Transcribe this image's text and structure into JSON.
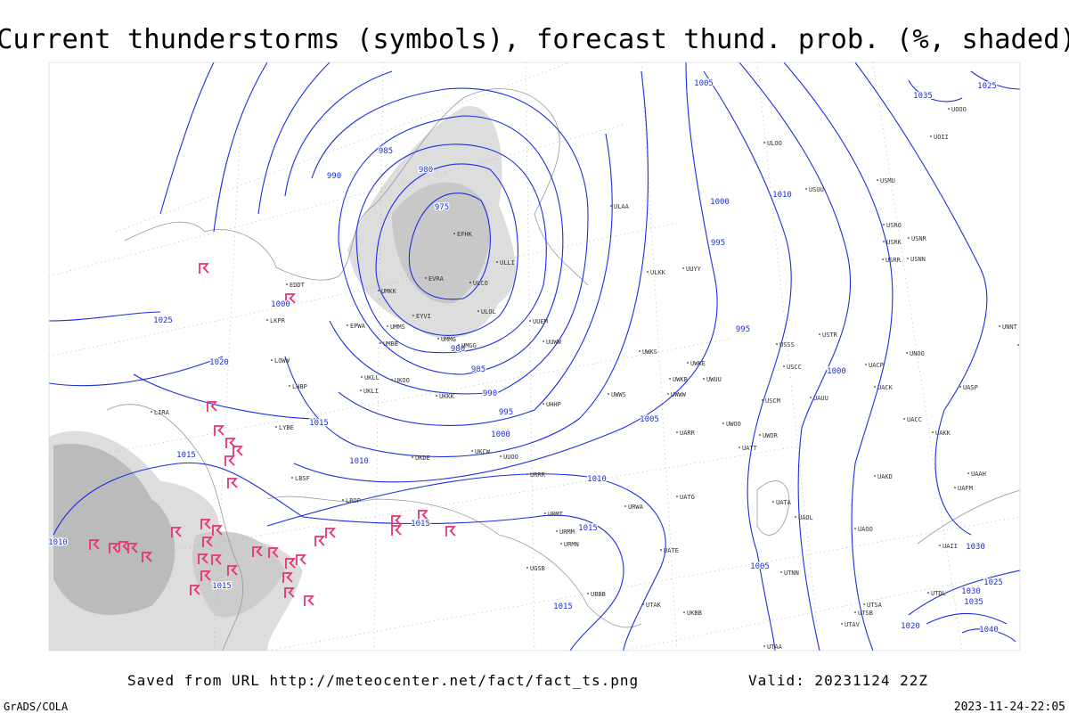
{
  "title": "Current thunderstorms (symbols), forecast thund. prob. (%, shaded)",
  "footer": {
    "source": "Saved from URL http://meteocenter.net/fact/fact_ts.png",
    "valid": "Valid: 20231124 22Z",
    "credit": "GrADS/COLA",
    "timestamp": "2023-11-24-22:05"
  },
  "isobar_labels": [
    "985",
    "980",
    "990",
    "975",
    "1000",
    "1025",
    "1020",
    "1015",
    "1015",
    "1010",
    "995",
    "990",
    "985",
    "980",
    "1000",
    "1005",
    "1000",
    "1010",
    "995",
    "995",
    "1000",
    "1005",
    "1010",
    "1015",
    "1015",
    "1015",
    "1015",
    "1005",
    "1035",
    "1025",
    "1010",
    "1030",
    "1025",
    "1030",
    "1035",
    "1040",
    "1020"
  ],
  "stations": [
    "ULAA",
    "ULOL",
    "ULCO",
    "EFHK",
    "EVRA",
    "UMKK",
    "EYVI",
    "EPWA",
    "UMMS",
    "UMBB",
    "UMMG",
    "UMGG",
    "ULLI",
    "UUEM",
    "UUWW",
    "UKLL",
    "UKLI",
    "UKKK",
    "LHBP",
    "LOWW",
    "LKPR",
    "EDDT",
    "LIRA",
    "LYBE",
    "LBSF",
    "LROP",
    "UUYY",
    "ULKK",
    "UWKS",
    "UWKE",
    "UWKB",
    "UWWW",
    "UWUU",
    "USCC",
    "USSS",
    "USTR",
    "USCM",
    "UAUU",
    "UACC",
    "UAKK",
    "UACK",
    "UACP",
    "UNOO",
    "UASP",
    "UATT",
    "UWOO",
    "UWOR",
    "UARR",
    "UATG",
    "UATA",
    "UAOL",
    "UAOO",
    "UATE",
    "UTNN",
    "UTAA",
    "UTSA",
    "UTSB",
    "UTAV",
    "UTDL",
    "UAII",
    "UAFM",
    "UAAH",
    "UAKD",
    "USMU",
    "USRO",
    "USRK",
    "USRR",
    "USNN",
    "USNR",
    "USUU",
    "ULOO",
    "UOOO",
    "UOII",
    "UNNT",
    "UNBB",
    "URRR",
    "URWA",
    "URMT",
    "URMM",
    "URMN",
    "UGSB",
    "UBBB",
    "UTAK",
    "UKBB",
    "UKOO",
    "UKDE",
    "UKCW",
    "UUOO",
    "UHHP",
    "UWWS"
  ]
}
